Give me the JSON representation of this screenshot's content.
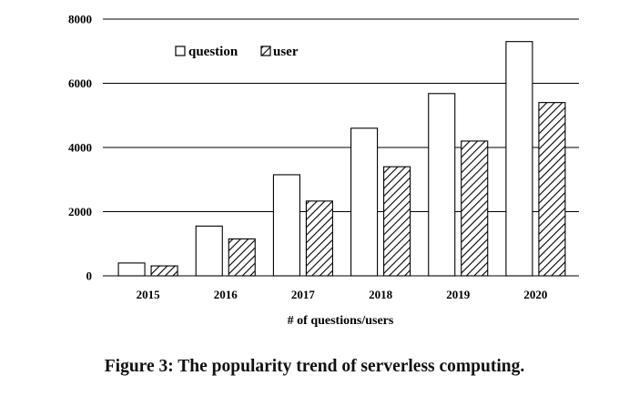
{
  "chart_data": {
    "type": "bar",
    "categories": [
      "2015",
      "2016",
      "2017",
      "2018",
      "2019",
      "2020"
    ],
    "series": [
      {
        "name": "question",
        "values": [
          400,
          1550,
          3150,
          4600,
          5680,
          7300
        ],
        "fill": "#ffffff",
        "pattern": "none"
      },
      {
        "name": "user",
        "values": [
          310,
          1150,
          2330,
          3400,
          4200,
          5400
        ],
        "fill": "#ffffff",
        "pattern": "diagonal-hatch"
      }
    ],
    "title": "",
    "xlabel": "# of questions/users",
    "ylabel": "",
    "ylim": [
      0,
      8000
    ],
    "yticks": [
      0,
      2000,
      4000,
      6000,
      8000
    ],
    "grid": "horizontal",
    "legend_position": "top-left",
    "colors": {
      "stroke": "#000000",
      "grid": "#000000",
      "hatch": "#000000"
    }
  },
  "caption": "Figure 3: The popularity trend of serverless computing."
}
